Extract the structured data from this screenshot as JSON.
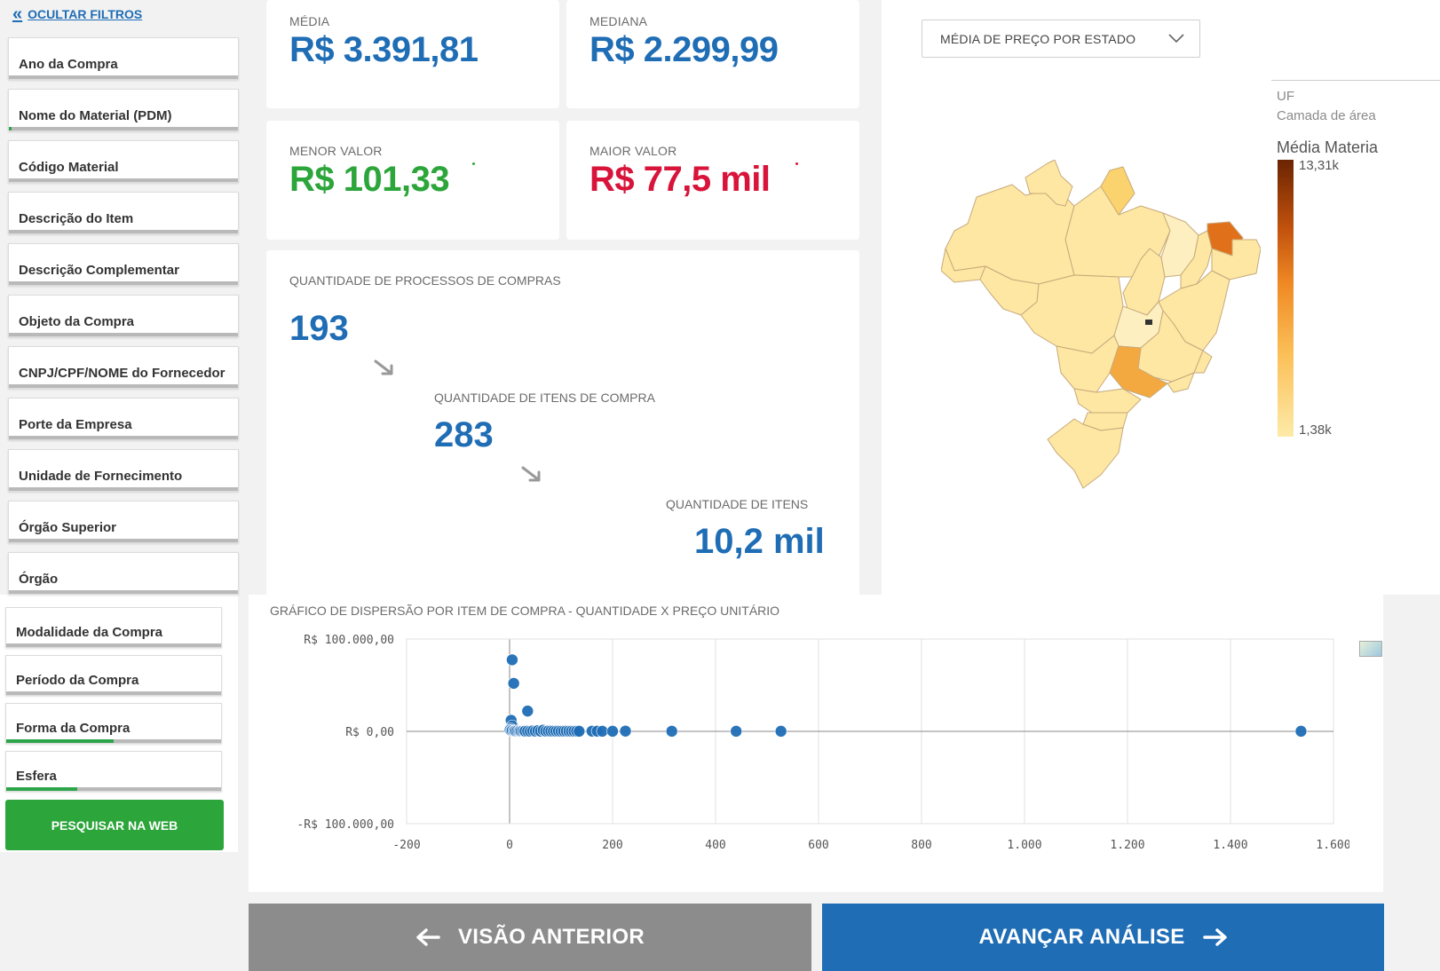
{
  "sidebar": {
    "hide_filters": "OCULTAR FILTROS",
    "filters": [
      {
        "label": "Ano da Compra",
        "progress": 0
      },
      {
        "label": "Nome do Material (PDM)",
        "progress": 0.01
      },
      {
        "label": "Código Material",
        "progress": 0
      },
      {
        "label": "Descrição do Item",
        "progress": 0
      },
      {
        "label": "Descrição Complementar",
        "progress": 0
      },
      {
        "label": "Objeto da Compra",
        "progress": 0
      },
      {
        "label": "CNPJ/CPF/NOME do Fornecedor",
        "progress": 0
      },
      {
        "label": "Porte da Empresa",
        "progress": 0
      },
      {
        "label": "Unidade de Fornecimento",
        "progress": 0
      },
      {
        "label": "Órgão Superior",
        "progress": 0
      },
      {
        "label": "Órgão",
        "progress": 0
      }
    ],
    "filters_lower": [
      {
        "label": "Modalidade da Compra",
        "progress": 0
      },
      {
        "label": "Período da Compra",
        "progress": 0
      },
      {
        "label": "Forma da Compra",
        "progress": 0.5
      },
      {
        "label": "Esfera",
        "progress": 0.33
      }
    ],
    "search_button": "PESQUISAR NA WEB"
  },
  "kpis": {
    "media": {
      "label": "MÉDIA",
      "value": "R$ 3.391,81"
    },
    "mediana": {
      "label": "MEDIANA",
      "value": "R$ 2.299,99"
    },
    "menor": {
      "label": "MENOR VALOR",
      "value": "R$ 101,33"
    },
    "maior": {
      "label": "MAIOR VALOR",
      "value": "R$ 77,5 mil"
    }
  },
  "funnel": {
    "processos": {
      "label": "QUANTIDADE DE PROCESSOS DE COMPRAS",
      "value": "193"
    },
    "itens_compra": {
      "label": "QUANTIDADE DE ITENS DE COMPRA",
      "value": "283"
    },
    "itens": {
      "label": "QUANTIDADE DE ITENS",
      "value": "10,2 mil"
    }
  },
  "map": {
    "selector": "MÉDIA DE PREÇO POR ESTADO",
    "legend_uf": "UF",
    "legend_layer": "Camada de área",
    "legend_title": "Média Materia",
    "legend_max": "13,31k",
    "legend_min": "1,38k",
    "colors": {
      "low": "#fde7a3",
      "mid": "#f4a940",
      "high": "#e0711a",
      "max": "#6b2402"
    }
  },
  "chart_data": {
    "type": "scatter",
    "title": "GRÁFICO DE DISPERSÃO POR ITEM DE COMPRA - QUANTIDADE X PREÇO UNITÁRIO",
    "xlabel": "",
    "ylabel": "",
    "xlim": [
      -200,
      1600
    ],
    "ylim": [
      -100000,
      100000
    ],
    "x_ticks": [
      "-200",
      "0",
      "200",
      "400",
      "600",
      "800",
      "1.000",
      "1.200",
      "1.400",
      "1.600"
    ],
    "y_ticks": [
      "R$ 100.000,00",
      "R$ 0,00",
      "-R$ 100.000,00"
    ],
    "grid": true,
    "color": "#1f6db5",
    "points": [
      [
        5,
        77500
      ],
      [
        8,
        52000
      ],
      [
        35,
        22000
      ],
      [
        3,
        12000
      ],
      [
        5,
        6000
      ],
      [
        2,
        3000
      ],
      [
        1,
        1500
      ],
      [
        3,
        800
      ],
      [
        5,
        1000
      ],
      [
        8,
        500
      ],
      [
        10,
        700
      ],
      [
        12,
        400
      ],
      [
        15,
        600
      ],
      [
        18,
        300
      ],
      [
        20,
        500
      ],
      [
        22,
        200
      ],
      [
        25,
        400
      ],
      [
        28,
        300
      ],
      [
        30,
        200
      ],
      [
        35,
        300
      ],
      [
        40,
        150
      ],
      [
        45,
        500
      ],
      [
        50,
        200
      ],
      [
        55,
        900
      ],
      [
        60,
        300
      ],
      [
        65,
        1200
      ],
      [
        70,
        200
      ],
      [
        75,
        400
      ],
      [
        80,
        300
      ],
      [
        85,
        250
      ],
      [
        90,
        200
      ],
      [
        95,
        300
      ],
      [
        100,
        150
      ],
      [
        105,
        200
      ],
      [
        110,
        300
      ],
      [
        115,
        200
      ],
      [
        120,
        150
      ],
      [
        125,
        100
      ],
      [
        130,
        200
      ],
      [
        135,
        150
      ],
      [
        160,
        200
      ],
      [
        170,
        200
      ],
      [
        180,
        150
      ],
      [
        200,
        150
      ],
      [
        225,
        300
      ],
      [
        315,
        150
      ],
      [
        440,
        150
      ],
      [
        527,
        150
      ],
      [
        1537,
        150
      ]
    ]
  },
  "nav": {
    "prev": "VISÃO ANTERIOR",
    "next": "AVANÇAR ANÁLISE"
  }
}
